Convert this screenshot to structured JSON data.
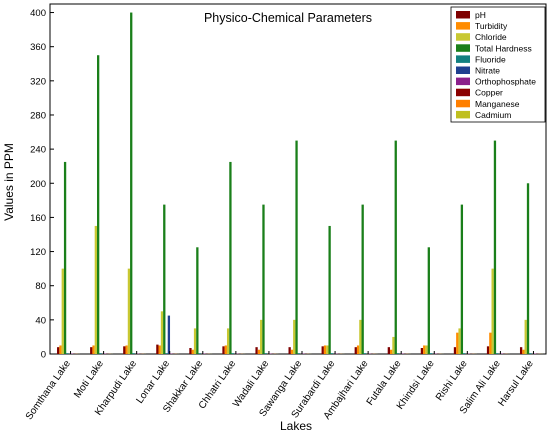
{
  "chart_data": {
    "type": "bar",
    "title": "Physico-Chemical Parameters",
    "xlabel": "Lakes",
    "ylabel": "Values in PPM",
    "ylim": [
      0,
      410
    ],
    "yticks": [
      0,
      40,
      80,
      120,
      160,
      200,
      240,
      280,
      320,
      360,
      400
    ],
    "grid": false,
    "legend_position": "top-right",
    "categories": [
      "Somthana Lake",
      "Moti Lake",
      "Kharpudi Lake",
      "Lonar Lake",
      "Shakkar Lake",
      "Chhatri Lake",
      "Wadali Lake",
      "Sawanga Lake",
      "Surabardi Lake",
      "Ambajhari Lake",
      "Futala Lake",
      "Khindsi Lake",
      "Rishi Lake",
      "Salim Ali Lake",
      "Harsul Lake"
    ],
    "series": [
      {
        "name": "pH",
        "color": "#7f0000",
        "values": [
          8,
          8,
          9,
          11,
          7,
          9,
          8,
          8,
          9,
          8,
          8,
          7,
          8,
          9,
          8
        ]
      },
      {
        "name": "Turbidity",
        "color": "#ff8c00",
        "values": [
          10,
          10,
          10,
          10,
          5,
          10,
          5,
          5,
          10,
          10,
          5,
          10,
          25,
          25,
          5
        ]
      },
      {
        "name": "Chloride",
        "color": "#c8c832",
        "values": [
          100,
          150,
          100,
          50,
          30,
          30,
          40,
          40,
          10,
          40,
          20,
          10,
          30,
          100,
          40
        ]
      },
      {
        "name": "Total Hardness",
        "color": "#1a7f1a",
        "values": [
          225,
          350,
          400,
          175,
          125,
          225,
          175,
          250,
          150,
          175,
          250,
          125,
          175,
          250,
          200
        ]
      },
      {
        "name": "Fluoride",
        "color": "#128080",
        "values": [
          1,
          1,
          1,
          1,
          1,
          1,
          1,
          1,
          1,
          1,
          1,
          1,
          1,
          1,
          1
        ]
      },
      {
        "name": "Nitrate",
        "color": "#1f3f8f",
        "values": [
          0,
          0,
          0,
          45,
          0,
          0,
          0,
          0,
          0,
          0,
          0,
          0,
          0,
          0,
          0
        ]
      },
      {
        "name": "Orthophosphate",
        "color": "#8b1f8b",
        "values": [
          0.5,
          0.5,
          0.5,
          0.5,
          0.5,
          0.5,
          0.5,
          0.5,
          0.5,
          0.5,
          0.5,
          0.5,
          0.5,
          0.5,
          0.5
        ]
      },
      {
        "name": "Copper",
        "color": "#8b0000",
        "values": [
          0.2,
          0.2,
          0.2,
          0.2,
          0.2,
          0.2,
          0.2,
          0.2,
          0.2,
          0.2,
          0.2,
          0.2,
          0.2,
          0.2,
          0.2
        ]
      },
      {
        "name": "Manganese",
        "color": "#ff7f00",
        "values": [
          0.2,
          0.2,
          0.2,
          0.2,
          0.2,
          0.2,
          0.2,
          0.2,
          0.2,
          0.2,
          0.2,
          0.2,
          0.2,
          0.2,
          0.2
        ]
      },
      {
        "name": "Cadmium",
        "color": "#bfbf1f",
        "values": [
          0.1,
          0.1,
          0.1,
          0.1,
          0.1,
          0.1,
          0.1,
          0.1,
          0.1,
          0.1,
          0.1,
          0.1,
          0.1,
          0.1,
          0.1
        ]
      }
    ]
  }
}
